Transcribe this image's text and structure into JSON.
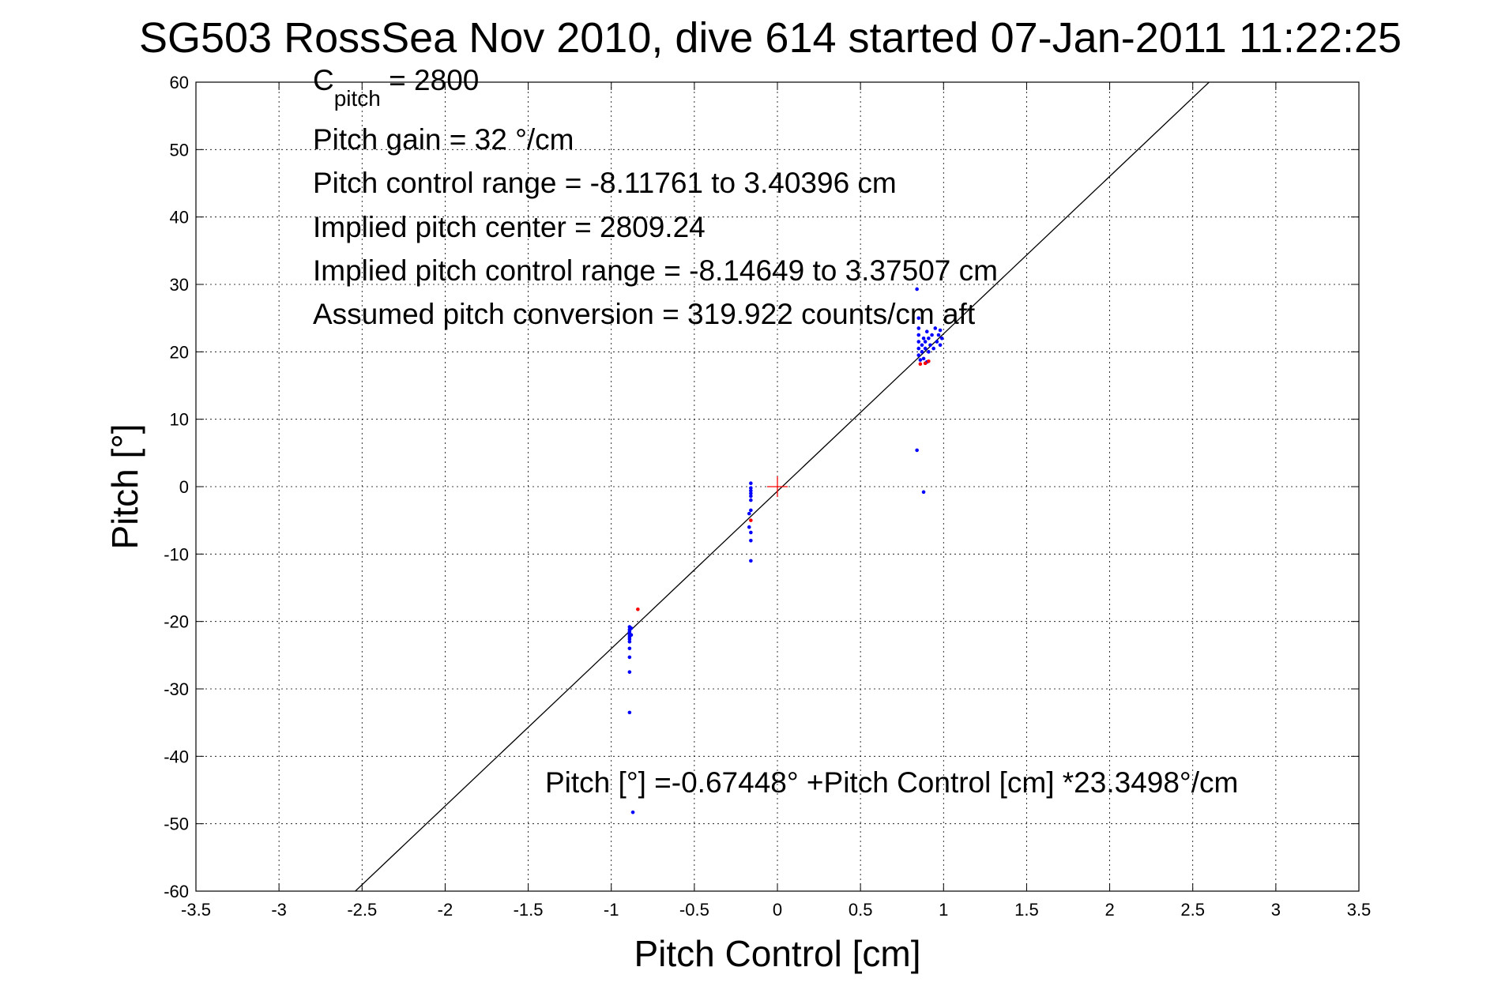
{
  "chart_data": {
    "type": "scatter",
    "title": "SG503 RossSea Nov 2010, dive 614 started 07-Jan-2011 11:22:25",
    "xlabel": "Pitch Control [cm]",
    "ylabel": "Pitch [°]",
    "xlim": [
      -3.5,
      3.5
    ],
    "ylim": [
      -60,
      60
    ],
    "xticks": [
      "-3.5",
      "-3",
      "-2.5",
      "-2",
      "-1.5",
      "-1",
      "-0.5",
      "0",
      "0.5",
      "1",
      "1.5",
      "2",
      "2.5",
      "3",
      "3.5"
    ],
    "yticks": [
      "60",
      "50",
      "40",
      "30",
      "20",
      "10",
      "0",
      "-10",
      "-20",
      "-30",
      "-40",
      "-50",
      "-60"
    ],
    "grid": true,
    "annotations": {
      "c_pitch_main": "C",
      "c_pitch_sub": "pitch",
      "c_pitch_value": " = 2800",
      "pitch_gain": "Pitch gain = 32 °/cm",
      "pitch_control_range": "Pitch control range = -8.11761 to 3.40396 cm",
      "implied_pitch_center": "Implied pitch center = 2809.24",
      "implied_pitch_control_range": "Implied pitch control range = -8.14649 to 3.37507 cm",
      "assumed_pitch_conversion": "Assumed pitch conversion = 319.922 counts/cm aft",
      "fit_equation": "Pitch [°] =-0.67448° +Pitch Control [cm] *23.3498°/cm"
    },
    "fit_line": {
      "intercept": -0.67448,
      "slope": 23.3498,
      "color": "#000000"
    },
    "center_marker": {
      "x": 0,
      "y": 0,
      "color": "#ff0000"
    },
    "series": [
      {
        "color": "#0000ff",
        "points": [
          [
            -0.89,
            -20.8
          ],
          [
            -0.89,
            -21.2
          ],
          [
            -0.89,
            -21.5
          ],
          [
            -0.89,
            -21.8
          ],
          [
            -0.89,
            -22.0
          ],
          [
            -0.89,
            -22.3
          ],
          [
            -0.89,
            -22.6
          ],
          [
            -0.89,
            -23.0
          ],
          [
            -0.89,
            -24.0
          ],
          [
            -0.89,
            -25.3
          ],
          [
            -0.89,
            -27.5
          ],
          [
            -0.89,
            -33.5
          ],
          [
            -0.87,
            -48.3
          ],
          [
            -0.88,
            -21.0
          ],
          [
            -0.88,
            -22.0
          ],
          [
            -0.16,
            0.5
          ],
          [
            -0.16,
            -0.2
          ],
          [
            -0.16,
            -0.6
          ],
          [
            -0.16,
            -1.0
          ],
          [
            -0.16,
            -1.4
          ],
          [
            -0.16,
            -2.0
          ],
          [
            -0.16,
            -3.5
          ],
          [
            -0.17,
            -4.0
          ],
          [
            -0.17,
            -6.0
          ],
          [
            -0.16,
            -6.8
          ],
          [
            -0.16,
            -8.0
          ],
          [
            -0.16,
            -11.0
          ],
          [
            0.84,
            29.3
          ],
          [
            0.85,
            25.0
          ],
          [
            0.85,
            23.5
          ],
          [
            0.85,
            22.5
          ],
          [
            0.85,
            21.5
          ],
          [
            0.85,
            20.5
          ],
          [
            0.85,
            19.5
          ],
          [
            0.86,
            18.8
          ],
          [
            0.87,
            21.0
          ],
          [
            0.87,
            20.0
          ],
          [
            0.88,
            22.0
          ],
          [
            0.88,
            19.0
          ],
          [
            0.89,
            21.5
          ],
          [
            0.89,
            20.5
          ],
          [
            0.9,
            23.0
          ],
          [
            0.9,
            18.5
          ],
          [
            0.91,
            22.0
          ],
          [
            0.91,
            20.0
          ],
          [
            0.92,
            21.0
          ],
          [
            0.93,
            22.5
          ],
          [
            0.94,
            20.5
          ],
          [
            0.95,
            23.5
          ],
          [
            0.96,
            21.5
          ],
          [
            0.97,
            22.5
          ],
          [
            0.98,
            21.0
          ],
          [
            0.98,
            23.2
          ],
          [
            0.99,
            22.0
          ],
          [
            0.84,
            5.4
          ],
          [
            0.88,
            -0.8
          ]
        ]
      },
      {
        "color": "#ff0000",
        "points": [
          [
            -0.84,
            -18.2
          ],
          [
            -0.16,
            -5.0
          ],
          [
            0.86,
            18.2
          ],
          [
            0.89,
            18.3
          ],
          [
            0.91,
            18.6
          ]
        ]
      }
    ]
  }
}
